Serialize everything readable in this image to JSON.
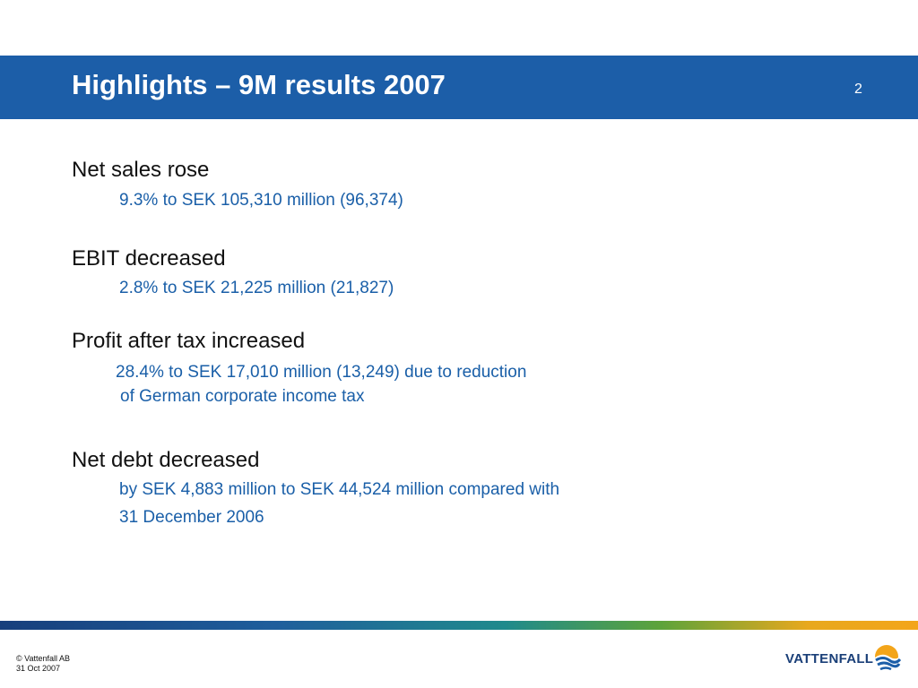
{
  "header": {
    "title": "Highlights – 9M results 2007",
    "page_number": "2"
  },
  "highlights": [
    {
      "heading": "Net sales rose",
      "detail_lines": [
        "9.3% to SEK 105,310 million (96,374)"
      ]
    },
    {
      "heading": "EBIT decreased",
      "detail_lines": [
        "2.8% to SEK 21,225 million (21,827)"
      ]
    },
    {
      "heading": "Profit after tax increased",
      "detail_lines": [
        "28.4% to SEK 17,010 million (13,249) due to reduction",
        "of German corporate income tax"
      ]
    },
    {
      "heading": "Net debt decreased",
      "detail_lines": [
        "by SEK 4,883 million to SEK 44,524 million compared with",
        "31 December 2006"
      ]
    }
  ],
  "footer": {
    "copyright": "© Vattenfall AB",
    "date": "31 Oct 2007",
    "logo_text": "VATTENFALL",
    "logo_icon": "vattenfall-sun-water-icon"
  },
  "colors": {
    "title_bar": "#1c5ea8",
    "detail_text": "#1a5fa8",
    "footer_gradient": [
      "#173f7c",
      "#1f8a8c",
      "#5da33a",
      "#f3a51a"
    ]
  }
}
